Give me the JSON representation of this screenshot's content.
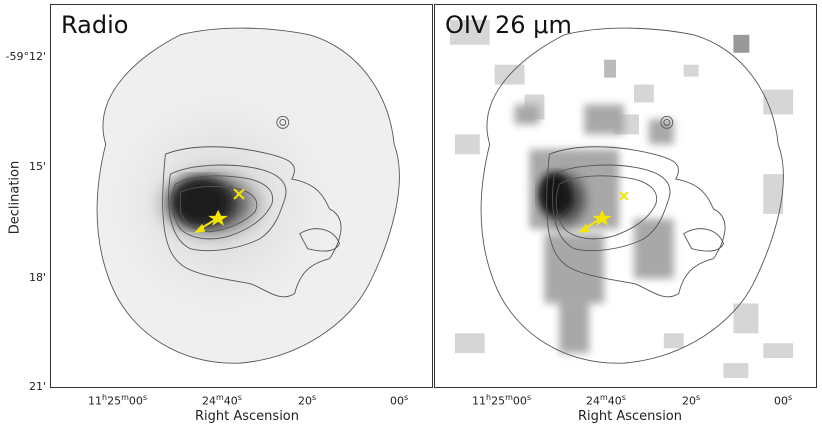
{
  "panels": [
    {
      "title": "Radio"
    },
    {
      "title": "OIV 26 μm"
    }
  ],
  "axes": {
    "ylabel": "Declination",
    "xlabel": "Right Ascension",
    "yticks": [
      "-59°12'",
      "15'",
      "18'",
      "21'"
    ],
    "xticks": [
      {
        "h": "11",
        "hs": "h",
        "m": "25",
        "ms": "m",
        "s": "00",
        "ss": "s"
      },
      {
        "m": "24",
        "ms": "m",
        "s": "40",
        "ss": "s"
      },
      {
        "s": "20",
        "ss": "s"
      },
      {
        "s": "00",
        "ss": "s"
      }
    ]
  },
  "colors": {
    "marker": "#f2e600",
    "contour": "#555555"
  }
}
